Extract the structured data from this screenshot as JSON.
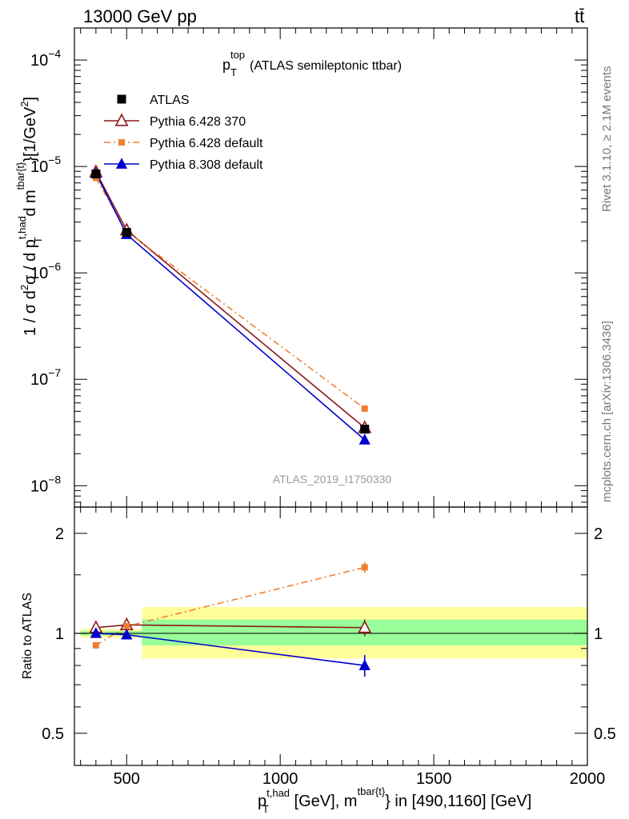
{
  "header": {
    "left": "13000 GeV pp",
    "right": "tt̄"
  },
  "side_labels": {
    "rivet": "Rivet 3.1.10, ≥ 2.1M events",
    "mcplots": "mcplots.cern.ch [arXiv:1306.3436]"
  },
  "chart_data": {
    "type": "line",
    "title": {
      "main": "p",
      "sub": "T",
      "sup": "top",
      "rest": "(ATLAS semileptonic ttbar)"
    },
    "analysis_id": "ATLAS_2019_I1750330",
    "xlabel": {
      "p": "p",
      "p_sup": "t,had",
      "p_sub": "T",
      "mid": " [GeV], m",
      "m_sup": "tbar{t}",
      "end": "} in [490,1160] [GeV]"
    },
    "ylabel_main": {
      "a": "1 / σ d",
      "a_sup": "2",
      "b": "σ / d p",
      "b_sup": "t,had",
      "b_sub": "T",
      "c": " d m",
      "c_sup": "tbar{t}",
      "d": "}[1/GeV",
      "d_sup": "2",
      "e": "]"
    },
    "ylabel_ratio": "Ratio to ATLAS",
    "xlim": [
      330,
      2000
    ],
    "main_ylim": [
      6.3e-09,
      0.0002
    ],
    "main_log": true,
    "ratio_ylim": [
      0.4,
      2.4
    ],
    "ratio_log": true,
    "x_ticks": [
      {
        "v": 500,
        "label": "500"
      },
      {
        "v": 1000,
        "label": "1000"
      },
      {
        "v": 1500,
        "label": "1500"
      },
      {
        "v": 2000,
        "label": "2000"
      }
    ],
    "main_yticks": [
      {
        "v": 1e-08,
        "base": "10",
        "exp": "−8"
      },
      {
        "v": 1e-07,
        "base": "10",
        "exp": "−7"
      },
      {
        "v": 1e-06,
        "base": "10",
        "exp": "−6"
      },
      {
        "v": 1e-05,
        "base": "10",
        "exp": "−5"
      },
      {
        "v": 0.0001,
        "base": "10",
        "exp": "−4"
      }
    ],
    "ratio_yticks": [
      {
        "v": 0.5,
        "label": "0.5"
      },
      {
        "v": 1,
        "label": "1"
      },
      {
        "v": 2,
        "label": "2"
      }
    ],
    "x": [
      400,
      500,
      1275
    ],
    "series": [
      {
        "name": "ATLAS",
        "color": "#000000",
        "marker": "square",
        "line": "none",
        "values": [
          8.5e-06,
          2.4e-06,
          3.4e-08
        ]
      },
      {
        "name": "Pythia 6.428 370",
        "color": "#8b1a1a",
        "marker": "open-triangle",
        "line": "solid",
        "values": [
          8.9e-06,
          2.52e-06,
          3.5e-08
        ],
        "ratio": [
          1.04,
          1.06,
          1.04
        ],
        "ratio_err": [
          0.01,
          0.02,
          0.06
        ]
      },
      {
        "name": "Pythia 6.428 default",
        "color": "#f07f30",
        "marker": "square",
        "line": "dashdot",
        "values": [
          7.8e-06,
          2.45e-06,
          5.3e-08
        ],
        "ratio": [
          0.92,
          1.05,
          1.58
        ],
        "ratio_err": [
          0.01,
          0.02,
          0.06
        ]
      },
      {
        "name": "Pythia 8.308 default",
        "color": "#0000cc",
        "marker": "filled-triangle",
        "line": "solid",
        "values": [
          8.6e-06,
          2.3e-06,
          2.7e-08
        ],
        "ratio": [
          1.0,
          0.99,
          0.8
        ],
        "ratio_err": [
          0.01,
          0.02,
          0.06
        ]
      }
    ],
    "bands": [
      {
        "xlo": 350,
        "xhi": 550,
        "lo": 0.97,
        "hi": 1.03,
        "inner_lo": 0.985,
        "inner_hi": 1.015
      },
      {
        "xlo": 550,
        "xhi": 2000,
        "lo": 0.84,
        "hi": 1.2,
        "inner_lo": 0.92,
        "inner_hi": 1.1
      }
    ],
    "band_colors": {
      "outer": "#fffd99",
      "inner": "#99fd99"
    }
  }
}
